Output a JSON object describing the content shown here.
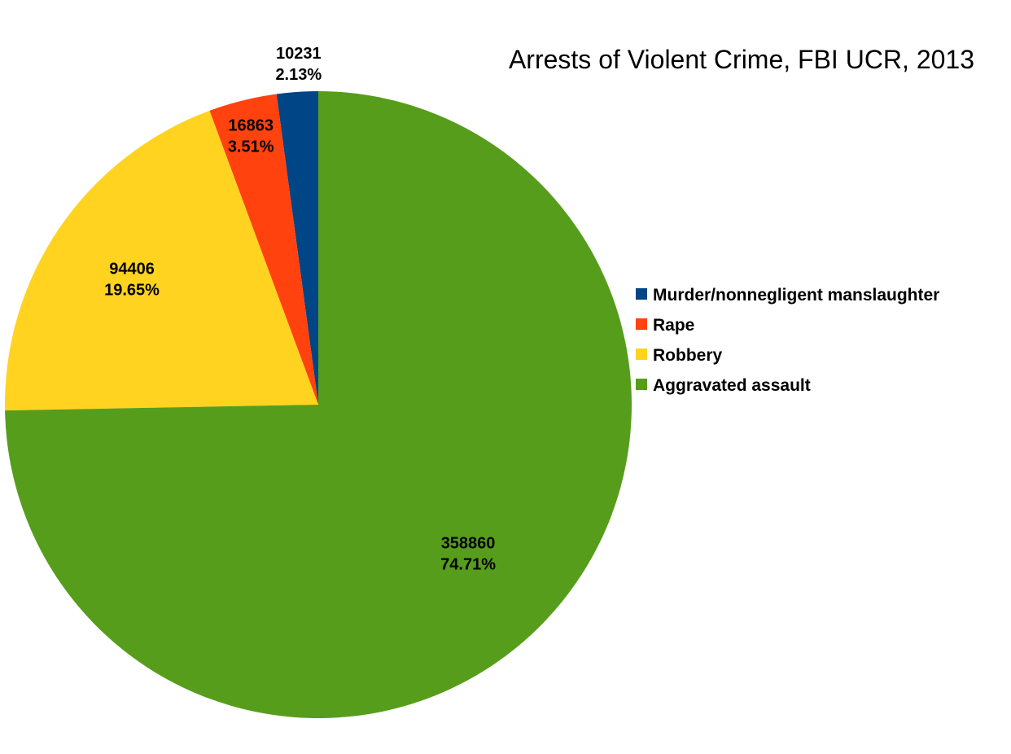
{
  "chart_data": {
    "type": "pie",
    "title": "Arrests of Violent Crime, FBI UCR, 2013",
    "legend_position": "right",
    "slices": [
      {
        "name": "Murder/nonnegligent manslaughter",
        "value": 10231,
        "percent": "2.13%",
        "color": "#004586"
      },
      {
        "name": "Rape",
        "value": 16863,
        "percent": "3.51%",
        "color": "#ff420e"
      },
      {
        "name": "Robbery",
        "value": 94406,
        "percent": "19.65%",
        "color": "#ffd320"
      },
      {
        "name": "Aggravated assault",
        "value": 358860,
        "percent": "74.71%",
        "color": "#579d1c"
      }
    ]
  }
}
